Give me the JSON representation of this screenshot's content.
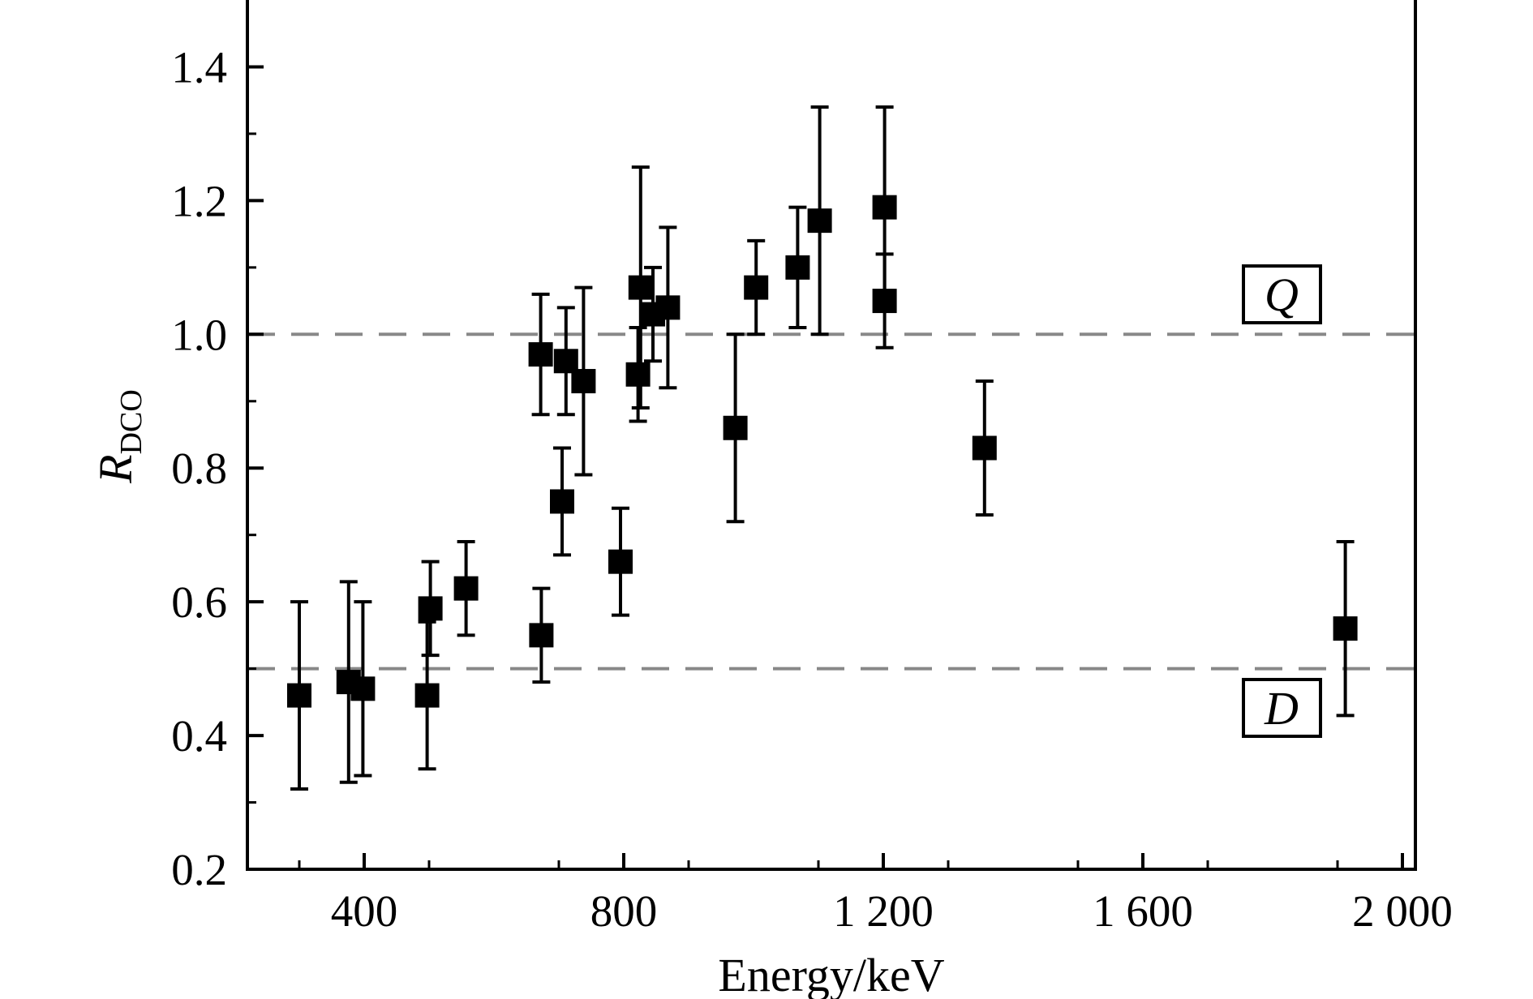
{
  "chart_data": {
    "type": "scatter",
    "xlabel": "Energy/keV",
    "ylabel_main": "R",
    "ylabel_sub": "DCO",
    "xlim": [
      220,
      2020
    ],
    "ylim": [
      0.2,
      1.5
    ],
    "x_ticks": [
      400,
      800,
      1200,
      1600,
      2000
    ],
    "x_tick_labels": [
      "400",
      "800",
      "1 200",
      "1 600",
      "2 000"
    ],
    "y_ticks": [
      0.2,
      0.4,
      0.6,
      0.8,
      1.0,
      1.2,
      1.4
    ],
    "y_tick_labels": [
      "0.2",
      "0.4",
      "0.6",
      "0.8",
      "1.0",
      "1.2",
      "1.4"
    ],
    "grid": false,
    "reference_lines": [
      {
        "y": 1.0,
        "label": "Q",
        "style": "dashed",
        "color": "#888888"
      },
      {
        "y": 0.5,
        "label": "D",
        "style": "dashed",
        "color": "#888888"
      }
    ],
    "series": [
      {
        "marker": "square",
        "color": "#000000",
        "points": [
          {
            "x": 300,
            "y": 0.46,
            "err_low": 0.32,
            "err_high": 0.6
          },
          {
            "x": 376,
            "y": 0.48,
            "err_low": 0.33,
            "err_high": 0.63
          },
          {
            "x": 398,
            "y": 0.47,
            "err_low": 0.34,
            "err_high": 0.6
          },
          {
            "x": 497,
            "y": 0.46,
            "err_low": 0.35,
            "err_high": 0.57
          },
          {
            "x": 502,
            "y": 0.59,
            "err_low": 0.52,
            "err_high": 0.66
          },
          {
            "x": 557,
            "y": 0.62,
            "err_low": 0.55,
            "err_high": 0.69
          },
          {
            "x": 673,
            "y": 0.55,
            "err_low": 0.48,
            "err_high": 0.62
          },
          {
            "x": 672,
            "y": 0.97,
            "err_low": 0.88,
            "err_high": 1.06
          },
          {
            "x": 705,
            "y": 0.75,
            "err_low": 0.67,
            "err_high": 0.83
          },
          {
            "x": 711,
            "y": 0.96,
            "err_low": 0.88,
            "err_high": 1.04
          },
          {
            "x": 738,
            "y": 0.93,
            "err_low": 0.79,
            "err_high": 1.07
          },
          {
            "x": 795,
            "y": 0.66,
            "err_low": 0.58,
            "err_high": 0.74
          },
          {
            "x": 822,
            "y": 0.94,
            "err_low": 0.87,
            "err_high": 1.01
          },
          {
            "x": 826,
            "y": 1.07,
            "err_low": 0.89,
            "err_high": 1.25
          },
          {
            "x": 845,
            "y": 1.03,
            "err_low": 0.96,
            "err_high": 1.1
          },
          {
            "x": 868,
            "y": 1.04,
            "err_low": 0.92,
            "err_high": 1.16
          },
          {
            "x": 972,
            "y": 0.86,
            "err_low": 0.72,
            "err_high": 1.0
          },
          {
            "x": 1004,
            "y": 1.07,
            "err_low": 1.0,
            "err_high": 1.14
          },
          {
            "x": 1068,
            "y": 1.1,
            "err_low": 1.01,
            "err_high": 1.19
          },
          {
            "x": 1102,
            "y": 1.17,
            "err_low": 1.0,
            "err_high": 1.34
          },
          {
            "x": 1202,
            "y": 1.19,
            "err_low": 1.04,
            "err_high": 1.34
          },
          {
            "x": 1202,
            "y": 1.05,
            "err_low": 0.98,
            "err_high": 1.12
          },
          {
            "x": 1356,
            "y": 0.83,
            "err_low": 0.73,
            "err_high": 0.93
          },
          {
            "x": 1912,
            "y": 0.56,
            "err_low": 0.43,
            "err_high": 0.69
          }
        ]
      }
    ]
  }
}
